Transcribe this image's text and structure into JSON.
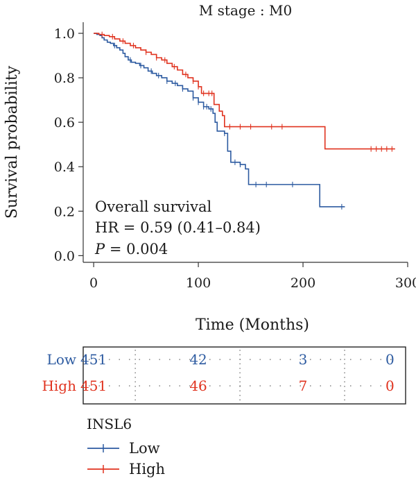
{
  "chart_data": {
    "type": "line",
    "title": "M stage : M0",
    "xlabel": "Time (Months)",
    "ylabel": "Survival probability",
    "xlim": [
      -10,
      300
    ],
    "ylim": [
      -0.03,
      1.05
    ],
    "x_ticks": [
      0,
      100,
      200,
      300
    ],
    "y_ticks": [
      0.0,
      0.2,
      0.4,
      0.6,
      0.8,
      1.0
    ],
    "y_tick_labels": [
      "0.0",
      "0.2",
      "0.4",
      "0.6",
      "0.8",
      "1.0"
    ],
    "grid": false,
    "annotations": {
      "line1": "Overall survival",
      "line2": "HR = 0.59 (0.41–0.84)",
      "p_label": "P",
      "p_value": " = 0.004"
    },
    "colors": {
      "low": "#2c5aa0",
      "high": "#e0321e"
    },
    "series": [
      {
        "name": "Low",
        "color": "#2c5aa0",
        "points": [
          [
            0,
            1.0
          ],
          [
            3,
            0.995
          ],
          [
            6,
            0.99
          ],
          [
            8,
            0.98
          ],
          [
            10,
            0.97
          ],
          [
            13,
            0.96
          ],
          [
            16,
            0.955
          ],
          [
            19,
            0.945
          ],
          [
            22,
            0.935
          ],
          [
            25,
            0.925
          ],
          [
            28,
            0.91
          ],
          [
            30,
            0.895
          ],
          [
            33,
            0.88
          ],
          [
            36,
            0.87
          ],
          [
            40,
            0.865
          ],
          [
            44,
            0.855
          ],
          [
            48,
            0.845
          ],
          [
            52,
            0.83
          ],
          [
            56,
            0.82
          ],
          [
            60,
            0.81
          ],
          [
            65,
            0.8
          ],
          [
            70,
            0.785
          ],
          [
            75,
            0.775
          ],
          [
            80,
            0.765
          ],
          [
            85,
            0.75
          ],
          [
            90,
            0.74
          ],
          [
            95,
            0.71
          ],
          [
            100,
            0.69
          ],
          [
            105,
            0.67
          ],
          [
            110,
            0.66
          ],
          [
            114,
            0.64
          ],
          [
            116,
            0.6
          ],
          [
            118,
            0.56
          ],
          [
            125,
            0.55
          ],
          [
            128,
            0.47
          ],
          [
            131,
            0.42
          ],
          [
            140,
            0.41
          ],
          [
            145,
            0.39
          ],
          [
            148,
            0.32
          ],
          [
            170,
            0.32
          ],
          [
            212,
            0.32
          ],
          [
            216,
            0.22
          ],
          [
            240,
            0.22
          ]
        ],
        "censor_x": [
          20,
          35,
          45,
          55,
          62,
          70,
          78,
          85,
          95,
          100,
          105,
          108,
          112,
          125,
          135,
          140,
          155,
          165,
          190,
          237
        ]
      },
      {
        "name": "High",
        "color": "#e0321e",
        "points": [
          [
            0,
            1.0
          ],
          [
            5,
            0.995
          ],
          [
            10,
            0.99
          ],
          [
            15,
            0.985
          ],
          [
            20,
            0.975
          ],
          [
            25,
            0.965
          ],
          [
            30,
            0.955
          ],
          [
            35,
            0.945
          ],
          [
            40,
            0.935
          ],
          [
            45,
            0.925
          ],
          [
            50,
            0.915
          ],
          [
            55,
            0.905
          ],
          [
            60,
            0.89
          ],
          [
            65,
            0.88
          ],
          [
            70,
            0.865
          ],
          [
            75,
            0.85
          ],
          [
            80,
            0.835
          ],
          [
            85,
            0.815
          ],
          [
            90,
            0.8
          ],
          [
            95,
            0.785
          ],
          [
            100,
            0.76
          ],
          [
            103,
            0.73
          ],
          [
            112,
            0.73
          ],
          [
            115,
            0.68
          ],
          [
            120,
            0.65
          ],
          [
            123,
            0.63
          ],
          [
            125,
            0.58
          ],
          [
            150,
            0.58
          ],
          [
            200,
            0.58
          ],
          [
            218,
            0.58
          ],
          [
            221,
            0.48
          ],
          [
            288,
            0.48
          ]
        ],
        "censor_x": [
          8,
          18,
          28,
          38,
          50,
          60,
          68,
          77,
          88,
          95,
          100,
          105,
          110,
          113,
          130,
          140,
          150,
          170,
          180,
          265,
          270,
          275,
          280,
          285
        ]
      }
    ],
    "risk_table": {
      "times": [
        0,
        100,
        200,
        283
      ],
      "rows": [
        {
          "name": "Low",
          "color": "#2c5aa0",
          "counts": [
            "451",
            "42",
            "3",
            "0"
          ]
        },
        {
          "name": "High",
          "color": "#e0321e",
          "counts": [
            "451",
            "46",
            "7",
            "0"
          ]
        }
      ]
    },
    "legend": {
      "title": "INSL6",
      "placement": "bottom-left",
      "items": [
        {
          "name": "Low",
          "color": "#2c5aa0"
        },
        {
          "name": "High",
          "color": "#e0321e"
        }
      ]
    }
  }
}
